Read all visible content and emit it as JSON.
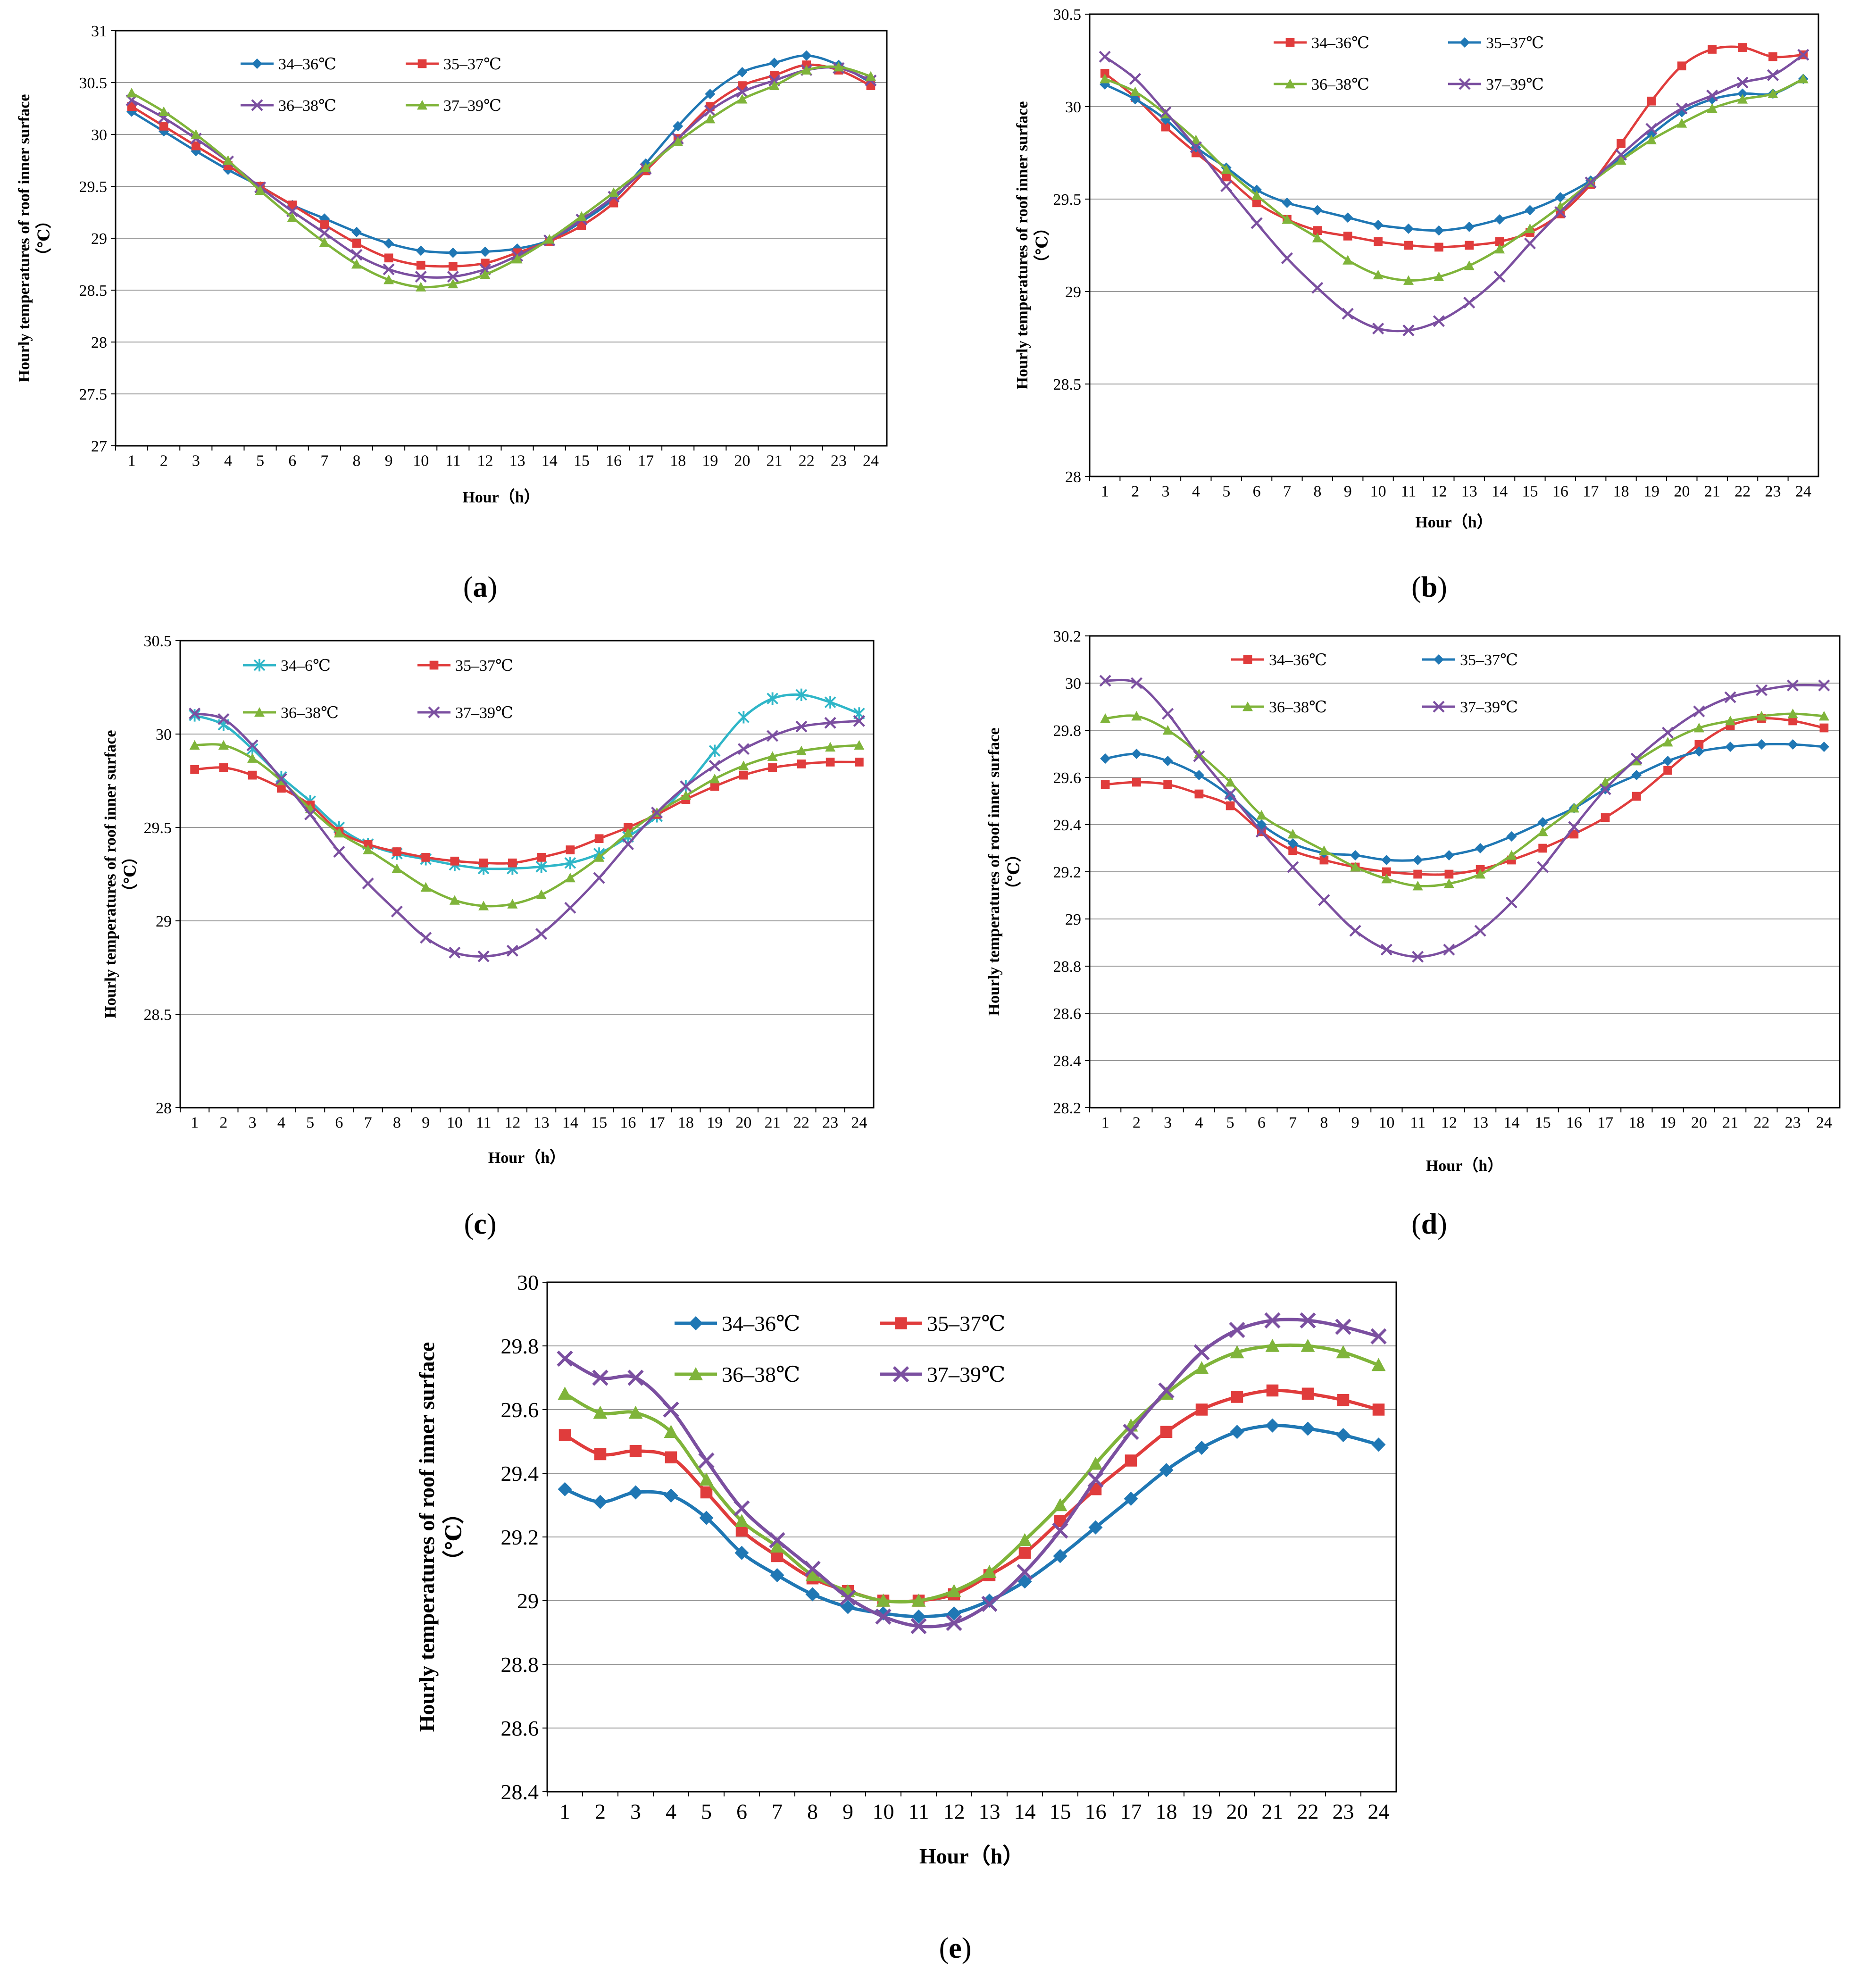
{
  "figure": {
    "x_label": "Hour（h）",
    "y_label_line1": "Hourly temperatures of roof inner surface",
    "y_label_line2": "（℃）",
    "hours": [
      1,
      2,
      3,
      4,
      5,
      6,
      7,
      8,
      9,
      10,
      11,
      12,
      13,
      14,
      15,
      16,
      17,
      18,
      19,
      20,
      21,
      22,
      23,
      24
    ]
  },
  "chart_data": [
    {
      "type": "line",
      "panel": "(a)",
      "caption": "(a)",
      "xlabel": "Hour（h）",
      "ylabel": "Hourly temperatures of roof inner surface（℃）",
      "ylim": [
        27,
        31
      ],
      "ytick_step": 0.5,
      "yticks": [
        "27",
        "27.5",
        "28",
        "28.5",
        "29",
        "29.5",
        "30",
        "30.5",
        "31"
      ],
      "grid": true,
      "legend_position": "top-left",
      "x": [
        1,
        2,
        3,
        4,
        5,
        6,
        7,
        8,
        9,
        10,
        11,
        12,
        13,
        14,
        15,
        16,
        17,
        18,
        19,
        20,
        21,
        22,
        23,
        24
      ],
      "series": [
        {
          "name": "34–36℃",
          "color": "#1f77b4",
          "marker": "diamond",
          "values": [
            30.22,
            30.03,
            29.84,
            29.66,
            29.5,
            29.32,
            29.19,
            29.06,
            28.95,
            28.88,
            28.86,
            28.87,
            28.9,
            28.98,
            29.16,
            29.38,
            29.72,
            30.08,
            30.39,
            30.6,
            30.69,
            30.76,
            30.67,
            30.5
          ]
        },
        {
          "name": "35–37℃",
          "color": "#e03c3c",
          "marker": "square",
          "values": [
            30.27,
            30.08,
            29.89,
            29.7,
            29.5,
            29.32,
            29.13,
            28.95,
            28.81,
            28.74,
            28.73,
            28.76,
            28.86,
            28.97,
            29.12,
            29.34,
            29.65,
            29.96,
            30.27,
            30.47,
            30.57,
            30.67,
            30.62,
            30.47
          ]
        },
        {
          "name": "36–38℃",
          "color": "#7b4fa0",
          "marker": "cross",
          "values": [
            30.33,
            30.16,
            29.96,
            29.74,
            29.49,
            29.26,
            29.05,
            28.84,
            28.7,
            28.63,
            28.63,
            28.7,
            28.83,
            28.98,
            29.18,
            29.4,
            29.67,
            29.96,
            30.23,
            30.41,
            30.52,
            30.62,
            30.64,
            30.52
          ]
        },
        {
          "name": "37–39℃",
          "color": "#7fb43a",
          "marker": "triangle",
          "values": [
            30.4,
            30.22,
            30.0,
            29.75,
            29.46,
            29.2,
            28.96,
            28.75,
            28.6,
            28.53,
            28.56,
            28.65,
            28.8,
            28.99,
            29.21,
            29.44,
            29.68,
            29.93,
            30.15,
            30.34,
            30.47,
            30.62,
            30.65,
            30.56
          ]
        }
      ]
    },
    {
      "type": "line",
      "panel": "(b)",
      "caption": "(b)",
      "xlabel": "Hour（h）",
      "ylabel": "Hourly temperatures of roof inner surface（℃）",
      "ylim": [
        28,
        30.5
      ],
      "ytick_step": 0.5,
      "yticks": [
        "28",
        "28.5",
        "29",
        "29.5",
        "30",
        "30.5"
      ],
      "grid": true,
      "legend_position": "top-center",
      "x": [
        1,
        2,
        3,
        4,
        5,
        6,
        7,
        8,
        9,
        10,
        11,
        12,
        13,
        14,
        15,
        16,
        17,
        18,
        19,
        20,
        21,
        22,
        23,
        24
      ],
      "series": [
        {
          "name": "34–36℃",
          "color": "#e03c3c",
          "marker": "square",
          "values": [
            30.18,
            30.05,
            29.89,
            29.75,
            29.62,
            29.48,
            29.39,
            29.33,
            29.3,
            29.27,
            29.25,
            29.24,
            29.25,
            29.27,
            29.32,
            29.42,
            29.58,
            29.8,
            30.03,
            30.22,
            30.31,
            30.32,
            30.27,
            30.28
          ]
        },
        {
          "name": "35–37℃",
          "color": "#1f77b4",
          "marker": "diamond",
          "values": [
            30.12,
            30.04,
            29.93,
            29.78,
            29.67,
            29.55,
            29.48,
            29.44,
            29.4,
            29.36,
            29.34,
            29.33,
            29.35,
            29.39,
            29.44,
            29.51,
            29.6,
            29.72,
            29.85,
            29.97,
            30.04,
            30.07,
            30.07,
            30.15
          ]
        },
        {
          "name": "36–38℃",
          "color": "#7fb43a",
          "marker": "triangle",
          "values": [
            30.15,
            30.08,
            29.96,
            29.82,
            29.66,
            29.52,
            29.39,
            29.29,
            29.17,
            29.09,
            29.06,
            29.08,
            29.14,
            29.23,
            29.34,
            29.46,
            29.59,
            29.71,
            29.82,
            29.91,
            29.99,
            30.04,
            30.07,
            30.15
          ]
        },
        {
          "name": "37–39℃",
          "color": "#7b4fa0",
          "marker": "cross",
          "values": [
            30.27,
            30.15,
            29.97,
            29.78,
            29.57,
            29.37,
            29.18,
            29.02,
            28.88,
            28.8,
            28.79,
            28.84,
            28.94,
            29.08,
            29.26,
            29.43,
            29.59,
            29.74,
            29.88,
            29.99,
            30.06,
            30.13,
            30.17,
            30.28
          ]
        }
      ]
    },
    {
      "type": "line",
      "panel": "(c)",
      "caption": "(c)",
      "xlabel": "Hour（h）",
      "ylabel": "Hourly temperatures of roof inner surface（℃）",
      "ylim": [
        28,
        30.5
      ],
      "ytick_step": 0.5,
      "yticks": [
        "28",
        "28.5",
        "29",
        "29.5",
        "30",
        "30.5"
      ],
      "grid": true,
      "legend_position": "top-center",
      "x": [
        1,
        2,
        3,
        4,
        5,
        6,
        7,
        8,
        9,
        10,
        11,
        12,
        13,
        14,
        15,
        16,
        17,
        18,
        19,
        20,
        21,
        22,
        23,
        24
      ],
      "series": [
        {
          "name": "34–6℃",
          "color": "#2fb6c8",
          "marker": "asterisk",
          "values": [
            30.1,
            30.05,
            29.92,
            29.77,
            29.64,
            29.5,
            29.41,
            29.36,
            29.33,
            29.3,
            29.28,
            29.28,
            29.29,
            29.31,
            29.36,
            29.45,
            29.56,
            29.72,
            29.91,
            30.09,
            30.19,
            30.21,
            30.17,
            30.11
          ]
        },
        {
          "name": "35–37℃",
          "color": "#e03c3c",
          "marker": "square",
          "values": [
            29.81,
            29.82,
            29.78,
            29.71,
            29.62,
            29.48,
            29.41,
            29.37,
            29.34,
            29.32,
            29.31,
            29.31,
            29.34,
            29.38,
            29.44,
            29.5,
            29.57,
            29.65,
            29.72,
            29.78,
            29.82,
            29.84,
            29.85,
            29.85
          ]
        },
        {
          "name": "36–38℃",
          "color": "#7fb43a",
          "marker": "triangle",
          "values": [
            29.94,
            29.94,
            29.87,
            29.75,
            29.6,
            29.47,
            29.38,
            29.28,
            29.18,
            29.11,
            29.08,
            29.09,
            29.14,
            29.23,
            29.34,
            29.47,
            29.58,
            29.67,
            29.76,
            29.83,
            29.88,
            29.91,
            29.93,
            29.94
          ]
        },
        {
          "name": "37–39℃",
          "color": "#7b4fa0",
          "marker": "cross",
          "values": [
            30.11,
            30.08,
            29.94,
            29.76,
            29.57,
            29.37,
            29.2,
            29.05,
            28.91,
            28.83,
            28.81,
            28.84,
            28.93,
            29.07,
            29.23,
            29.41,
            29.58,
            29.72,
            29.83,
            29.92,
            29.99,
            30.04,
            30.06,
            30.07
          ]
        }
      ]
    },
    {
      "type": "line",
      "panel": "(d)",
      "caption": "(d)",
      "xlabel": "Hour（h）",
      "ylabel": "Hourly temperatures of roof inner surface（℃）",
      "ylim": [
        28.2,
        30.2
      ],
      "ytick_step": 0.2,
      "yticks": [
        "28.2",
        "28.4",
        "28.6",
        "28.8",
        "29",
        "29.2",
        "29.4",
        "29.6",
        "29.8",
        "30",
        "30.2"
      ],
      "grid": true,
      "legend_position": "top-center",
      "x": [
        1,
        2,
        3,
        4,
        5,
        6,
        7,
        8,
        9,
        10,
        11,
        12,
        13,
        14,
        15,
        16,
        17,
        18,
        19,
        20,
        21,
        22,
        23,
        24
      ],
      "series": [
        {
          "name": "34–36℃",
          "color": "#e03c3c",
          "marker": "square",
          "values": [
            29.57,
            29.58,
            29.57,
            29.53,
            29.48,
            29.37,
            29.29,
            29.25,
            29.22,
            29.2,
            29.19,
            29.19,
            29.21,
            29.25,
            29.3,
            29.36,
            29.43,
            29.52,
            29.63,
            29.74,
            29.82,
            29.85,
            29.84,
            29.81
          ]
        },
        {
          "name": "35–37℃",
          "color": "#1f77b4",
          "marker": "diamond",
          "values": [
            29.68,
            29.7,
            29.67,
            29.61,
            29.52,
            29.4,
            29.32,
            29.28,
            29.27,
            29.25,
            29.25,
            29.27,
            29.3,
            29.35,
            29.41,
            29.47,
            29.55,
            29.61,
            29.67,
            29.71,
            29.73,
            29.74,
            29.74,
            29.73
          ]
        },
        {
          "name": "36–38℃",
          "color": "#7fb43a",
          "marker": "triangle",
          "values": [
            29.85,
            29.86,
            29.8,
            29.7,
            29.58,
            29.44,
            29.36,
            29.29,
            29.22,
            29.17,
            29.14,
            29.15,
            29.19,
            29.27,
            29.37,
            29.47,
            29.58,
            29.67,
            29.75,
            29.81,
            29.84,
            29.86,
            29.87,
            29.86
          ]
        },
        {
          "name": "37–39℃",
          "color": "#7b4fa0",
          "marker": "cross",
          "values": [
            30.01,
            30.0,
            29.87,
            29.69,
            29.53,
            29.37,
            29.22,
            29.08,
            28.95,
            28.87,
            28.84,
            28.87,
            28.95,
            29.07,
            29.22,
            29.39,
            29.55,
            29.68,
            29.79,
            29.88,
            29.94,
            29.97,
            29.99,
            29.99
          ]
        }
      ]
    },
    {
      "type": "line",
      "panel": "(e)",
      "caption": "(e)",
      "xlabel": "Hour（h）",
      "ylabel": "Hourly temperatures of roof inner surface（℃）",
      "ylim": [
        28.4,
        30
      ],
      "ytick_step": 0.2,
      "yticks": [
        "28.4",
        "28.6",
        "28.8",
        "29",
        "29.2",
        "29.4",
        "29.6",
        "29.8",
        "30"
      ],
      "grid": true,
      "legend_position": "top-left",
      "x": [
        1,
        2,
        3,
        4,
        5,
        6,
        7,
        8,
        9,
        10,
        11,
        12,
        13,
        14,
        15,
        16,
        17,
        18,
        19,
        20,
        21,
        22,
        23,
        24
      ],
      "series": [
        {
          "name": "34–36℃",
          "color": "#1f77b4",
          "marker": "diamond",
          "values": [
            29.35,
            29.31,
            29.34,
            29.33,
            29.26,
            29.15,
            29.08,
            29.02,
            28.98,
            28.96,
            28.95,
            28.96,
            29.0,
            29.06,
            29.14,
            29.23,
            29.32,
            29.41,
            29.48,
            29.53,
            29.55,
            29.54,
            29.52,
            29.49
          ]
        },
        {
          "name": "35–37℃",
          "color": "#e03c3c",
          "marker": "square",
          "values": [
            29.52,
            29.46,
            29.47,
            29.45,
            29.34,
            29.22,
            29.14,
            29.07,
            29.03,
            29.0,
            29.0,
            29.02,
            29.08,
            29.15,
            29.25,
            29.35,
            29.44,
            29.53,
            29.6,
            29.64,
            29.66,
            29.65,
            29.63,
            29.6
          ]
        },
        {
          "name": "36–38℃",
          "color": "#7fb43a",
          "marker": "triangle",
          "values": [
            29.65,
            29.59,
            29.59,
            29.53,
            29.38,
            29.25,
            29.17,
            29.08,
            29.03,
            29.0,
            29.0,
            29.03,
            29.09,
            29.19,
            29.3,
            29.43,
            29.55,
            29.65,
            29.73,
            29.78,
            29.8,
            29.8,
            29.78,
            29.74
          ]
        },
        {
          "name": "37–39℃",
          "color": "#7b4fa0",
          "marker": "cross",
          "values": [
            29.76,
            29.7,
            29.7,
            29.6,
            29.44,
            29.29,
            29.19,
            29.1,
            29.01,
            28.95,
            28.92,
            28.93,
            28.99,
            29.09,
            29.22,
            29.38,
            29.53,
            29.66,
            29.78,
            29.85,
            29.88,
            29.88,
            29.86,
            29.83
          ]
        }
      ]
    }
  ]
}
